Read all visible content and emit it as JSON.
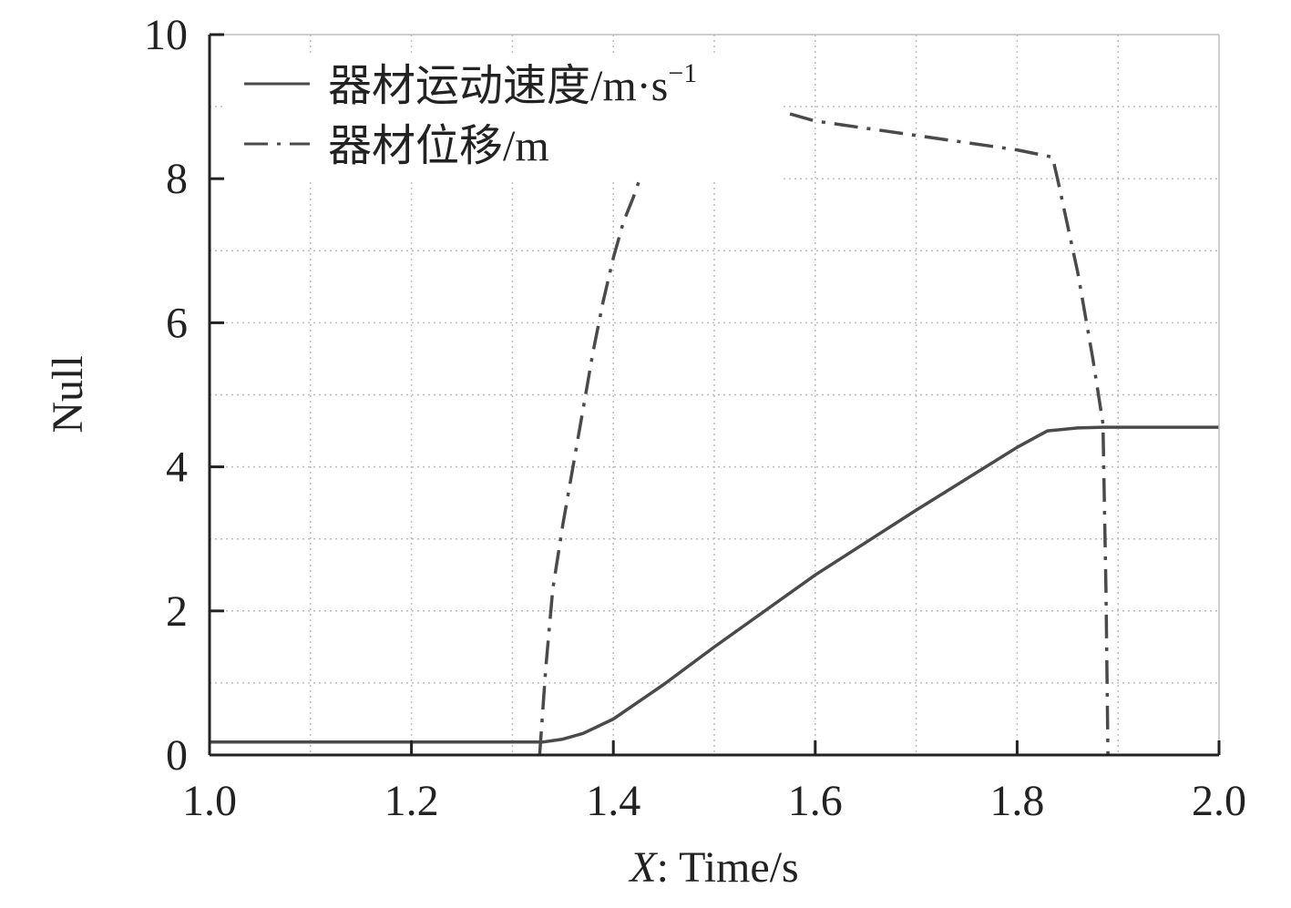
{
  "chart_data": {
    "type": "line",
    "title": "",
    "xlabel_prefix": "X",
    "xlabel_rest": ": Time/s",
    "ylabel": "Null",
    "xlim": [
      1.0,
      2.0
    ],
    "ylim": [
      0,
      10
    ],
    "x_ticks": [
      1.0,
      1.2,
      1.4,
      1.6,
      1.8,
      2.0
    ],
    "x_tick_labels": [
      "1.0",
      "1.2",
      "1.4",
      "1.6",
      "1.8",
      "2.0"
    ],
    "y_ticks": [
      0,
      2,
      4,
      6,
      8,
      10
    ],
    "y_tick_labels": [
      "0",
      "2",
      "4",
      "6",
      "8",
      "10"
    ],
    "grid": true,
    "legend_position": "top-left",
    "colors": {
      "line": "#4a4a4a",
      "axis": "#222222",
      "grid": "#bdbdbd"
    },
    "series": [
      {
        "name": "器材运动速度/m·s",
        "name_superscript": "−1",
        "style": "solid",
        "x": [
          1.0,
          1.33,
          1.35,
          1.37,
          1.4,
          1.45,
          1.5,
          1.6,
          1.7,
          1.8,
          1.83,
          1.86,
          1.885,
          2.0
        ],
        "y": [
          0.18,
          0.18,
          0.22,
          0.3,
          0.5,
          0.98,
          1.5,
          2.5,
          3.4,
          4.27,
          4.5,
          4.54,
          4.55,
          4.55
        ]
      },
      {
        "name": "器材位移/m",
        "style": "dashdot",
        "segments": [
          {
            "x": [
              1.327,
              1.333,
              1.34,
              1.35,
              1.36,
              1.37,
              1.38,
              1.39,
              1.4,
              1.41,
              1.42,
              1.425
            ],
            "y": [
              0.0,
              1.2,
              2.3,
              3.2,
              4.0,
              4.8,
              5.6,
              6.3,
              6.9,
              7.4,
              7.75,
              7.95
            ]
          },
          {
            "x": [
              1.575,
              1.6,
              1.7,
              1.8,
              1.835,
              1.84,
              1.86,
              1.875,
              1.885,
              1.888,
              1.89
            ],
            "y": [
              8.9,
              8.8,
              8.6,
              8.4,
              8.3,
              8.0,
              6.7,
              5.5,
              4.6,
              2.3,
              0.0
            ]
          }
        ]
      }
    ]
  }
}
